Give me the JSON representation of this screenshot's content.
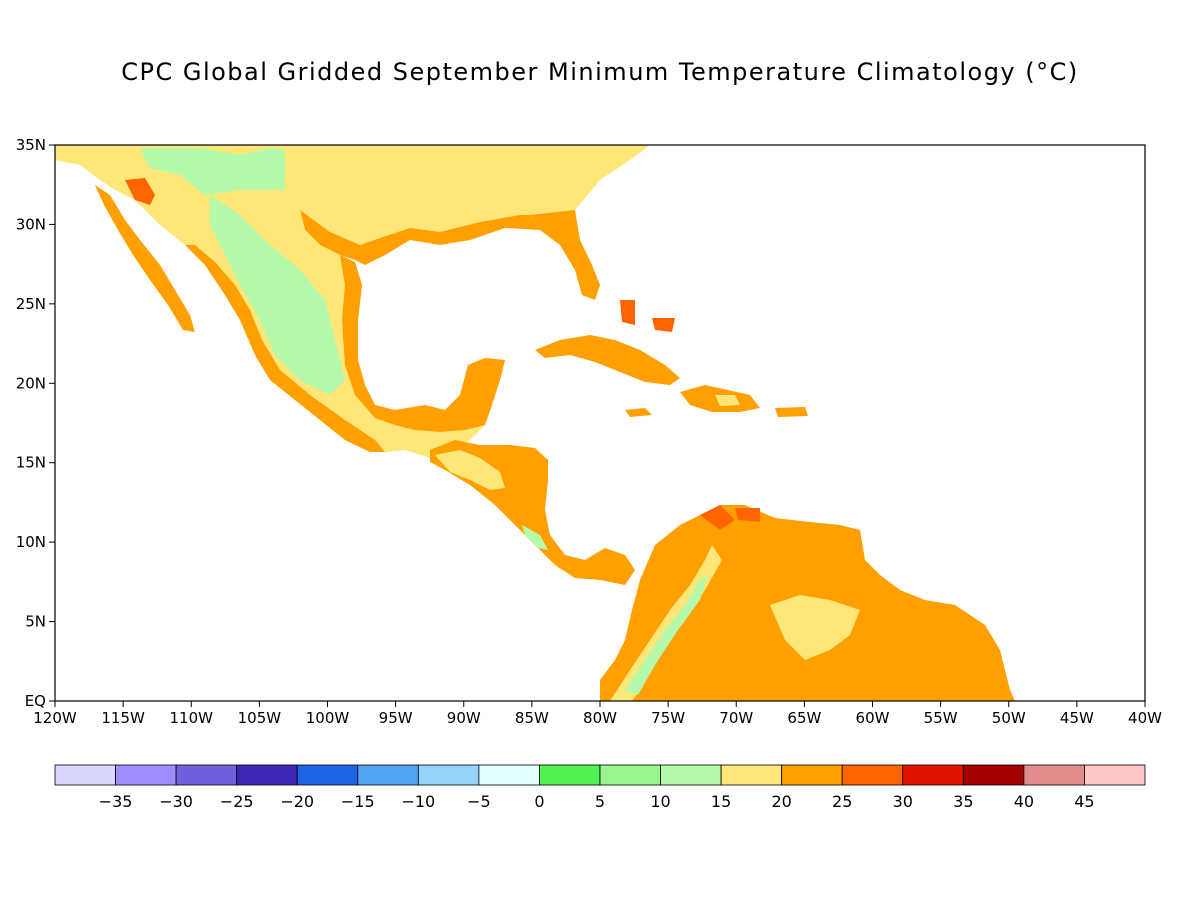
{
  "title": "CPC Global Gridded September Minimum Temperature Climatology (°C)",
  "map": {
    "lon_range": [
      -120,
      -40
    ],
    "lat_range": [
      0,
      35
    ],
    "lon_ticks": [
      {
        "lon": -120,
        "label": "120W"
      },
      {
        "lon": -115,
        "label": "115W"
      },
      {
        "lon": -110,
        "label": "110W"
      },
      {
        "lon": -105,
        "label": "105W"
      },
      {
        "lon": -100,
        "label": "100W"
      },
      {
        "lon": -95,
        "label": "95W"
      },
      {
        "lon": -90,
        "label": "90W"
      },
      {
        "lon": -85,
        "label": "85W"
      },
      {
        "lon": -80,
        "label": "80W"
      },
      {
        "lon": -75,
        "label": "75W"
      },
      {
        "lon": -70,
        "label": "70W"
      },
      {
        "lon": -65,
        "label": "65W"
      },
      {
        "lon": -60,
        "label": "60W"
      },
      {
        "lon": -55,
        "label": "55W"
      },
      {
        "lon": -50,
        "label": "50W"
      },
      {
        "lon": -45,
        "label": "45W"
      },
      {
        "lon": -40,
        "label": "40W"
      }
    ],
    "lat_ticks": [
      {
        "lat": 35,
        "label": "35N"
      },
      {
        "lat": 30,
        "label": "30N"
      },
      {
        "lat": 25,
        "label": "25N"
      },
      {
        "lat": 20,
        "label": "20N"
      },
      {
        "lat": 15,
        "label": "15N"
      },
      {
        "lat": 10,
        "label": "10N"
      },
      {
        "lat": 5,
        "label": "5N"
      },
      {
        "lat": 0,
        "label": "EQ"
      }
    ]
  },
  "colorbar": {
    "colors": [
      "#d8d8ff",
      "#a08cff",
      "#7060dc",
      "#3c28b4",
      "#1e64e6",
      "#50a5f5",
      "#96d2fa",
      "#e1ffff",
      "#50f050",
      "#96f58c",
      "#b4faaa",
      "#ffe678",
      "#ffa000",
      "#ff6400",
      "#e11400",
      "#a50000",
      "#e18c8c",
      "#ffc8c8"
    ],
    "labels": [
      "-35",
      "-30",
      "-25",
      "-20",
      "-15",
      "-10",
      "-5",
      "0",
      "5",
      "10",
      "15",
      "20",
      "25",
      "30",
      "35",
      "40",
      "45"
    ]
  },
  "regions": {
    "land_color": "#ffa000",
    "cool_color": "#ffe678",
    "green_color": "#b4faaa",
    "hot_color": "#ff6400",
    "border_color": "#000000"
  }
}
